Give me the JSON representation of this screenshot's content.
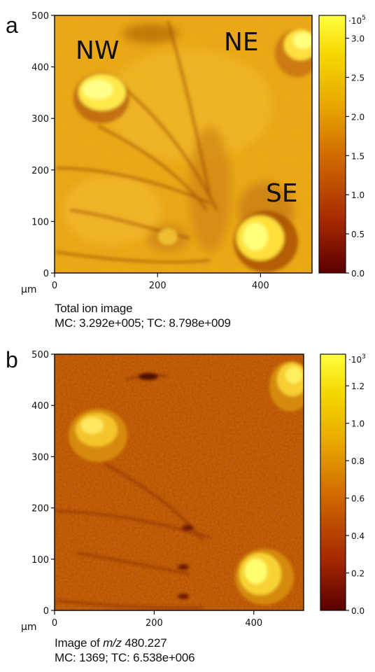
{
  "panels": [
    {
      "letter": "a",
      "caption_line1": "Total ion image",
      "caption_line2": "MC: 3.292e+005; TC: 8.798e+009",
      "region_labels": [
        "NW",
        "NE",
        "SE"
      ],
      "axis_unit": "µm",
      "x_ticks": [
        "0",
        "200",
        "400"
      ],
      "y_ticks": [
        "0",
        "100",
        "200",
        "300",
        "400",
        "500"
      ],
      "colorbar_exponent_base": "·10",
      "colorbar_exponent_power": "5",
      "colorbar_ticks": [
        "0.0",
        "0.5",
        "1.0",
        "1.5",
        "2.0",
        "2.5",
        "3.0"
      ],
      "colorbar_max": 3.292
    },
    {
      "letter": "b",
      "caption_line1_prefix": "Image of ",
      "caption_line1_italic": "m/z",
      "caption_line1_suffix": " 480.227",
      "caption_line2": "MC:  1369; TC: 6.538e+006",
      "axis_unit": "µm",
      "x_ticks": [
        "0",
        "200",
        "400"
      ],
      "y_ticks": [
        "0",
        "100",
        "200",
        "300",
        "400",
        "500"
      ],
      "colorbar_exponent_base": "·10",
      "colorbar_exponent_power": "3",
      "colorbar_ticks": [
        "0.0",
        "0.2",
        "0.4",
        "0.6",
        "0.8",
        "1.0",
        "1.2"
      ],
      "colorbar_max": 1.369
    }
  ],
  "colors": {
    "colormap": [
      "#5a0000",
      "#a52800",
      "#d06a00",
      "#e8a600",
      "#f5d800",
      "#ffff40"
    ],
    "frame": "#111111"
  }
}
